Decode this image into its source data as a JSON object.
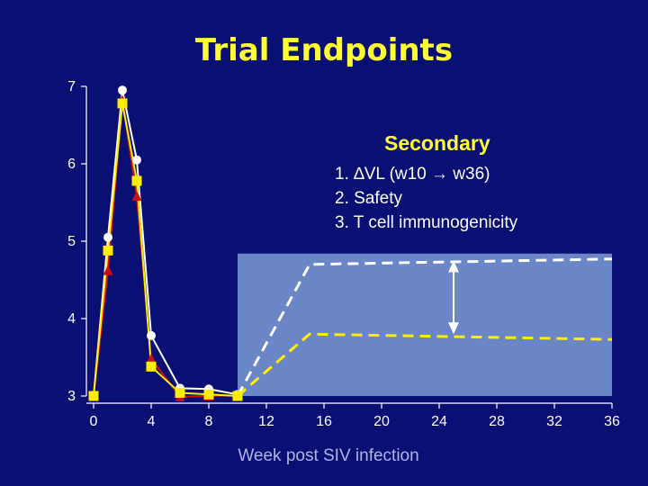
{
  "title": "Trial Endpoints",
  "secondary": {
    "heading": "Secondary",
    "items": [
      "1. ∆VL (w10 → w36)",
      "2. Safety",
      "3. T cell immunogenicity"
    ]
  },
  "chart_data": {
    "type": "line",
    "xlabel": "Week post SIV infection",
    "ylabel": "",
    "xlim": [
      0,
      36
    ],
    "ylim": [
      3,
      7
    ],
    "xticks": [
      0,
      4,
      8,
      12,
      16,
      20,
      24,
      28,
      32,
      36
    ],
    "yticks": [
      3,
      4,
      5,
      6,
      7
    ],
    "grid": false,
    "colors": {
      "background": "#0a0f74",
      "shaded_region": "#6a86c6",
      "white_series": "#ffffff",
      "red_series": "#cc1111",
      "yellow_series": "#ffee00",
      "axis": "#ffffff"
    },
    "series": [
      {
        "color": "white",
        "marker": "circle",
        "x": [
          0,
          1,
          2,
          3,
          4,
          6,
          8,
          10
        ],
        "y": [
          3.0,
          5.05,
          6.95,
          6.05,
          3.78,
          3.1,
          3.09,
          3.02
        ]
      },
      {
        "color": "red",
        "marker": "triangle",
        "x": [
          0,
          1,
          2,
          3,
          4,
          6,
          8,
          10
        ],
        "y": [
          3.0,
          4.62,
          6.82,
          5.58,
          3.48,
          2.99,
          3.0,
          3.01
        ]
      },
      {
        "color": "yellow",
        "marker": "square",
        "x": [
          0,
          1,
          2,
          3,
          4,
          6,
          8,
          10
        ],
        "y": [
          3.0,
          4.88,
          6.78,
          5.78,
          3.38,
          3.04,
          3.02,
          3.0
        ]
      }
    ],
    "projections": [
      {
        "color": "white",
        "style": "dashed",
        "x": [
          10,
          15,
          36
        ],
        "y": [
          3.0,
          4.7,
          4.77
        ]
      },
      {
        "color": "yellow",
        "style": "dashed",
        "x": [
          10,
          15,
          36
        ],
        "y": [
          3.0,
          3.8,
          3.73
        ]
      }
    ],
    "shaded_region": {
      "x": [
        10,
        36
      ],
      "y": [
        3,
        4.84
      ]
    },
    "annotation": {
      "type": "double-arrow",
      "x": 25,
      "y": [
        3.8,
        4.75
      ]
    }
  }
}
